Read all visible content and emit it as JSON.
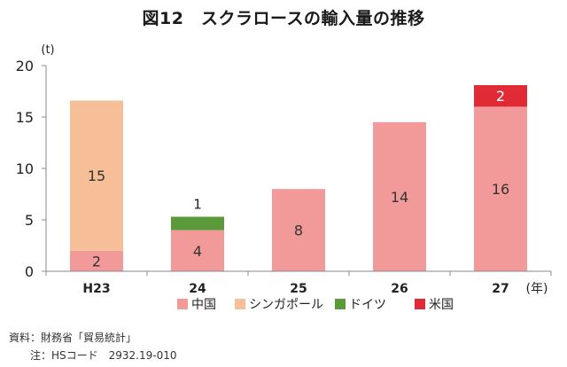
{
  "header": {
    "title": "図12　スクラロースの輸入量の推移"
  },
  "chart_data": {
    "type": "bar",
    "stacked": true,
    "title": "図12　スクラロースの輸入量の推移",
    "ylabel": "(t)",
    "xlabel_unit": "(年)",
    "categories": [
      "H23",
      "24",
      "25",
      "26",
      "27"
    ],
    "ylim": [
      0,
      20
    ],
    "yticks": [
      0,
      5,
      10,
      15,
      20
    ],
    "grid": false,
    "legend_position": "bottom",
    "series": [
      {
        "name": "中国",
        "color": "#f2999a",
        "values": [
          2,
          4,
          8,
          14.5,
          16
        ],
        "labels": [
          "2",
          "4",
          "8",
          "14",
          "16"
        ]
      },
      {
        "name": "シンガポール",
        "color": "#f7bf98",
        "values": [
          14.6,
          0,
          0,
          0,
          0
        ],
        "labels": [
          "15",
          "",
          "",
          "",
          ""
        ]
      },
      {
        "name": "ドイツ",
        "color": "#5b9a3a",
        "values": [
          0,
          1.3,
          0,
          0,
          0
        ],
        "labels": [
          "",
          "1",
          "",
          "",
          ""
        ]
      },
      {
        "name": "米国",
        "color": "#e02a36",
        "values": [
          0,
          0,
          0,
          0,
          2.1
        ],
        "labels": [
          "",
          "",
          "",
          "",
          "2"
        ]
      }
    ]
  },
  "footer": {
    "source": "資料：財務省「貿易統計」",
    "note": "注：HSコード　2932.19-010"
  }
}
